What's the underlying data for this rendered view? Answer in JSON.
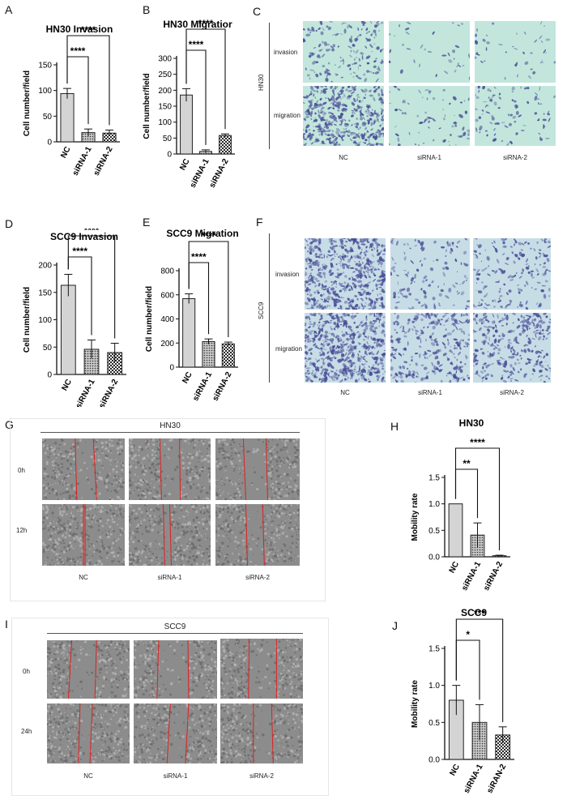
{
  "panel_letters": {
    "A": "A",
    "B": "B",
    "C": "C",
    "D": "D",
    "E": "E",
    "F": "F",
    "G": "G",
    "H": "H",
    "I": "I",
    "J": "J"
  },
  "colors": {
    "bar_fill": "#d4d4d4",
    "bar_stroke": "#222222",
    "transwell_hn30_bg": "#c2e6dc",
    "transwell_scc9_bg": "#c6dde6",
    "stain": "#4a4c96",
    "wound_bg": "#8c8c8c",
    "wound_line": "#e02020"
  },
  "transwell_hn30": {
    "cell_line": "HN30",
    "rows": [
      "invasion",
      "migration"
    ],
    "conditions": [
      "NC",
      "siRNA-1",
      "siRNA-2"
    ]
  },
  "transwell_scc9": {
    "cell_line": "SCC9",
    "rows": [
      "invasion",
      "migration"
    ],
    "conditions": [
      "NC",
      "siRNA-1",
      "siRNA-2"
    ]
  },
  "wound_hn30": {
    "title": "HN30",
    "rows": [
      "0h",
      "12h"
    ],
    "conditions": [
      "NC",
      "siRNA-1",
      "siRNA-2"
    ]
  },
  "wound_scc9": {
    "title": "SCC9",
    "rows": [
      "0h",
      "24h"
    ],
    "conditions": [
      "NC",
      "siRNA-1",
      "siRNA-2"
    ]
  },
  "chart_data": [
    {
      "id": "A",
      "type": "bar",
      "title": "HN30  Invasion",
      "ylabel": "Cell number/field",
      "categories": [
        "NC",
        "siRNA-1",
        "siRNA-2"
      ],
      "values": [
        94,
        18,
        17
      ],
      "errors": [
        10,
        7,
        6
      ],
      "patterns": [
        "solid",
        "dots",
        "checker"
      ],
      "ylim": [
        0,
        150
      ],
      "yticks": [
        0,
        50,
        100,
        150
      ],
      "significance": [
        {
          "from": 0,
          "to": 1,
          "label": "****"
        },
        {
          "from": 0,
          "to": 2,
          "label": "****"
        }
      ]
    },
    {
      "id": "B",
      "type": "bar",
      "title": "HN30   Migratior",
      "ylabel": "Cell number/field",
      "categories": [
        "NC",
        "siRNA-1",
        "siRNA-2"
      ],
      "values": [
        185,
        8,
        58
      ],
      "errors": [
        20,
        5,
        5
      ],
      "patterns": [
        "solid",
        "dots",
        "checker"
      ],
      "ylim": [
        0,
        300
      ],
      "yticks": [
        0,
        50,
        100,
        150,
        200,
        250,
        300
      ],
      "significance": [
        {
          "from": 0,
          "to": 1,
          "label": "****"
        },
        {
          "from": 0,
          "to": 2,
          "label": "****"
        }
      ]
    },
    {
      "id": "D",
      "type": "bar",
      "title": "SCC9  Invasion",
      "ylabel": "Cell number/field",
      "categories": [
        "NC",
        "siRNA-1",
        "siRNA-2"
      ],
      "values": [
        163,
        46,
        40
      ],
      "errors": [
        20,
        17,
        17
      ],
      "patterns": [
        "solid",
        "dots",
        "checker"
      ],
      "ylim": [
        0,
        200
      ],
      "yticks": [
        0,
        50,
        100,
        150,
        200
      ],
      "significance": [
        {
          "from": 0,
          "to": 1,
          "label": "****"
        },
        {
          "from": 0,
          "to": 2,
          "label": "****"
        }
      ]
    },
    {
      "id": "E",
      "type": "bar",
      "title": "SCC9  Migration",
      "ylabel": "Cell number/field",
      "categories": [
        "NC",
        "siRNA-1",
        "siRNA-2"
      ],
      "values": [
        568,
        212,
        193
      ],
      "errors": [
        40,
        22,
        15
      ],
      "patterns": [
        "solid",
        "dots",
        "checker"
      ],
      "ylim": [
        0,
        800
      ],
      "yticks": [
        0,
        200,
        400,
        600,
        800
      ],
      "significance": [
        {
          "from": 0,
          "to": 1,
          "label": "****"
        },
        {
          "from": 0,
          "to": 2,
          "label": "****"
        }
      ]
    },
    {
      "id": "H",
      "type": "bar",
      "title": "HN30",
      "ylabel": "Mobility rate",
      "categories": [
        "NC",
        "siRNA-1",
        "siRNA-2"
      ],
      "values": [
        1.0,
        0.41,
        0.02
      ],
      "errors": [
        0,
        0.23,
        0.01
      ],
      "patterns": [
        "solid",
        "dots",
        "checker"
      ],
      "ylim": [
        0,
        1.5
      ],
      "yticks": [
        0.0,
        0.5,
        1.0,
        1.5
      ],
      "tick_decimals": 1,
      "significance": [
        {
          "from": 0,
          "to": 1,
          "label": "**"
        },
        {
          "from": 0,
          "to": 2,
          "label": "****"
        }
      ]
    },
    {
      "id": "J",
      "type": "bar",
      "title": "SCC9",
      "ylabel": "Mobility rate",
      "categories": [
        "NC",
        "siRNA-1",
        "siRAN-2"
      ],
      "values": [
        0.8,
        0.5,
        0.33
      ],
      "errors": [
        0.2,
        0.24,
        0.11
      ],
      "patterns": [
        "solid",
        "dots",
        "checker"
      ],
      "ylim": [
        0,
        1.5
      ],
      "yticks": [
        0.0,
        0.5,
        1.0,
        1.5
      ],
      "tick_decimals": 1,
      "significance": [
        {
          "from": 0,
          "to": 1,
          "label": "*"
        },
        {
          "from": 0,
          "to": 2,
          "label": "***"
        }
      ]
    }
  ]
}
